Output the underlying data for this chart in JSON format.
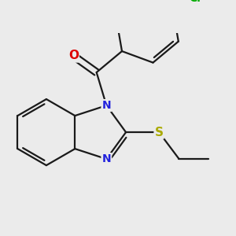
{
  "background_color": "#ebebeb",
  "bond_color": "#1a1a1a",
  "n_color": "#2222dd",
  "o_color": "#dd0000",
  "s_color": "#aaaa00",
  "cl_color": "#00aa00",
  "line_width": 1.6,
  "dpi": 100,
  "figsize": [
    3.0,
    3.0
  ],
  "xlim": [
    -2.5,
    4.5
  ],
  "ylim": [
    -2.8,
    2.8
  ]
}
